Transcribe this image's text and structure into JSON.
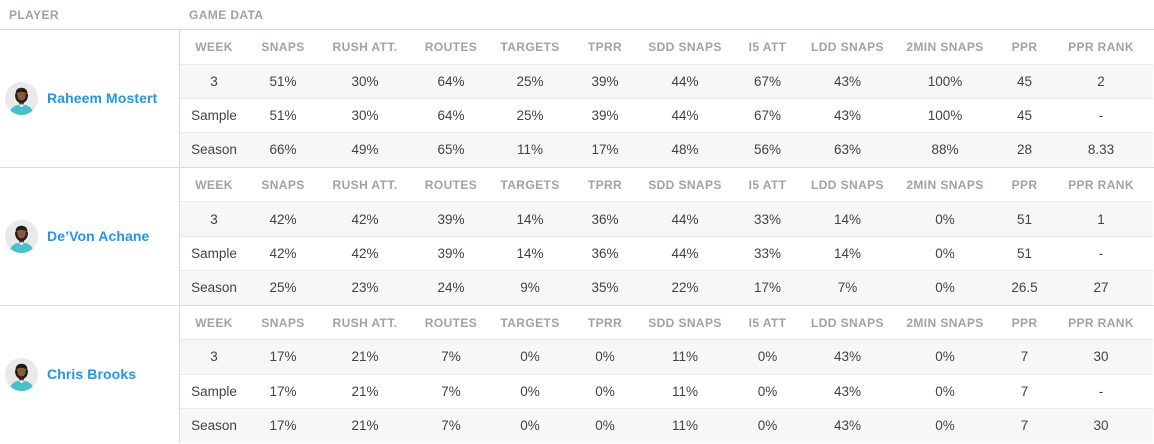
{
  "header": {
    "player": "PLAYER",
    "game_data": "GAME DATA"
  },
  "table": {
    "columns": [
      "WEEK",
      "SNAPS",
      "RUSH ATT.",
      "ROUTES",
      "TARGETS",
      "TPRR",
      "SDD SNAPS",
      "I5 ATT",
      "LDD SNAPS",
      "2MIN SNAPS",
      "PPR",
      "PPR RANK"
    ]
  },
  "players": [
    {
      "name": "Raheem Mostert",
      "avatar_icon": "player-headshot-icon",
      "rows": [
        [
          "3",
          "51%",
          "30%",
          "64%",
          "25%",
          "39%",
          "44%",
          "67%",
          "43%",
          "100%",
          "45",
          "2"
        ],
        [
          "Sample",
          "51%",
          "30%",
          "64%",
          "25%",
          "39%",
          "44%",
          "67%",
          "43%",
          "100%",
          "45",
          "-"
        ],
        [
          "Season",
          "66%",
          "49%",
          "65%",
          "11%",
          "17%",
          "48%",
          "56%",
          "63%",
          "88%",
          "28",
          "8.33"
        ]
      ]
    },
    {
      "name": "De’Von Achane",
      "avatar_icon": "player-headshot-icon",
      "rows": [
        [
          "3",
          "42%",
          "42%",
          "39%",
          "14%",
          "36%",
          "44%",
          "33%",
          "14%",
          "0%",
          "51",
          "1"
        ],
        [
          "Sample",
          "42%",
          "42%",
          "39%",
          "14%",
          "36%",
          "44%",
          "33%",
          "14%",
          "0%",
          "51",
          "-"
        ],
        [
          "Season",
          "25%",
          "23%",
          "24%",
          "9%",
          "35%",
          "22%",
          "17%",
          "7%",
          "0%",
          "26.5",
          "27"
        ]
      ]
    },
    {
      "name": "Chris Brooks",
      "avatar_icon": "player-headshot-icon",
      "rows": [
        [
          "3",
          "17%",
          "21%",
          "7%",
          "0%",
          "0%",
          "11%",
          "0%",
          "43%",
          "0%",
          "7",
          "30"
        ],
        [
          "Sample",
          "17%",
          "21%",
          "7%",
          "0%",
          "0%",
          "11%",
          "0%",
          "43%",
          "0%",
          "7",
          "-"
        ],
        [
          "Season",
          "17%",
          "21%",
          "7%",
          "0%",
          "0%",
          "11%",
          "0%",
          "43%",
          "0%",
          "7",
          "30"
        ]
      ]
    }
  ],
  "colors": {
    "accent_blue": "#1e96f0",
    "header_text": "#9ea3a8",
    "cell_text": "#3f4348",
    "row_stripe": "#f7f7f7",
    "border_light": "#e9e9e9",
    "border_section": "#d9dadb",
    "avatar_bg": "#e9e9e9",
    "jersey_teal": "#45c2cb"
  }
}
